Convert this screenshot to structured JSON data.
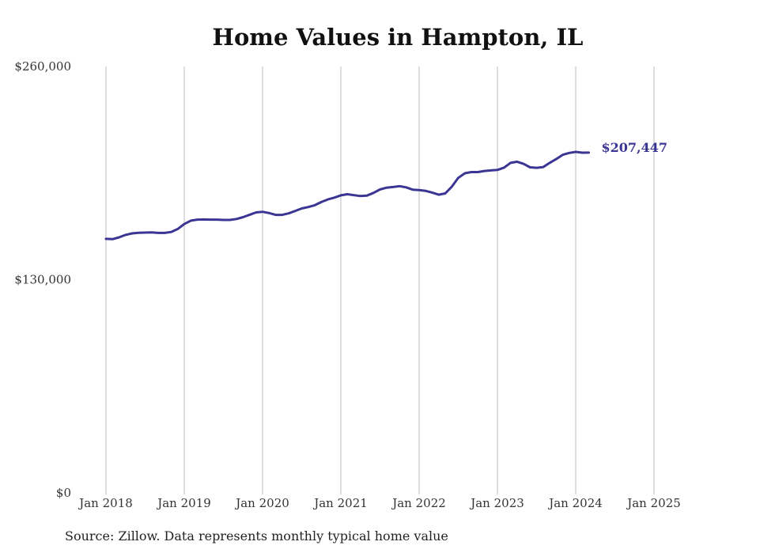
{
  "chart_data": {
    "type": "line",
    "title": "Home Values in Hampton, IL",
    "xlabel": "",
    "ylabel": "",
    "ylim": [
      0,
      260000
    ],
    "y_ticks": [
      "$0",
      "$130,000",
      "$260,000"
    ],
    "y_tick_values": [
      0,
      130000,
      260000
    ],
    "x_ticks": [
      "Jan 2018",
      "Jan 2019",
      "Jan 2020",
      "Jan 2021",
      "Jan 2022",
      "Jan 2023",
      "Jan 2024",
      "Jan 2025"
    ],
    "grid": "vertical",
    "legend": "none",
    "end_label": "$207,447",
    "color": "#3b3594",
    "series": [
      {
        "values": [
          154900,
          154700,
          155800,
          157300,
          158200,
          158600,
          158700,
          158800,
          158500,
          158500,
          159100,
          160900,
          163900,
          166000,
          166600,
          166700,
          166600,
          166600,
          166400,
          166400,
          167000,
          168100,
          169500,
          171000,
          171400,
          170600,
          169500,
          169500,
          170400,
          171900,
          173400,
          174300,
          175400,
          177300,
          178900,
          180000,
          181400,
          182100,
          181500,
          181000,
          181300,
          182900,
          185000,
          186100,
          186500,
          187000,
          186300,
          184900,
          184600,
          184100,
          183100,
          181800,
          182600,
          186700,
          192100,
          194900,
          195600,
          195600,
          196300,
          196600,
          196900,
          198300,
          201200,
          201900,
          200600,
          198500,
          198200,
          198600,
          201200,
          203500,
          206100,
          207300,
          207900,
          207400,
          207447
        ]
      }
    ],
    "x_start": "2018-01"
  },
  "source_note": "Source: Zillow. Data represents monthly typical home value"
}
